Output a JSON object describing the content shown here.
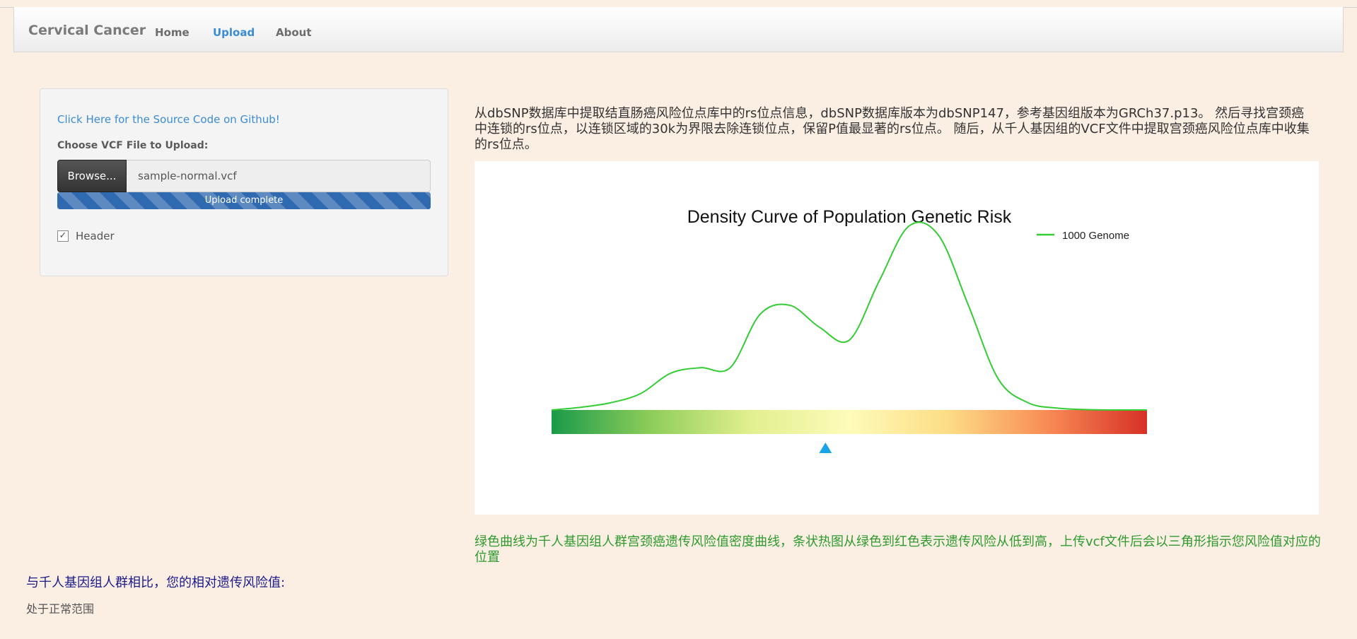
{
  "navbar": {
    "brand": "Cervical Cancer",
    "links": [
      {
        "label": "Home",
        "active": false
      },
      {
        "label": "Upload",
        "active": true
      },
      {
        "label": "About",
        "active": false
      }
    ]
  },
  "sidebar": {
    "github_link": "Click Here for the Source Code on Github!",
    "file_label": "Choose VCF File to Upload:",
    "browse_label": "Browse...",
    "file_name": "sample-normal.vcf",
    "progress_text": "Upload complete",
    "progress_value": 1.0,
    "header_label": "Header",
    "header_checked": true
  },
  "main": {
    "description": "从dbSNP数据库中提取结直肠癌风险位点库中的rs位点信息，dbSNP数据库版本为dbSNP147，参考基因组版本为GRCh37.p13。 然后寻找宫颈癌中连锁的rs位点，以连锁区域的30k为界限去除连锁位点，保留P值最显著的rs位点。 随后，从千人基因组的VCF文件中提取宫颈癌风险位点库中收集的rs位点。",
    "note": "绿色曲线为千人基因组人群宫颈癌遗传风险值密度曲线，条状热图从绿色到红色表示遗传风险从低到高，上传vcf文件后会以三角形指示您风险值对应的位置",
    "compare_label": "与千人基因组人群相比，您的相对遗传风险值:",
    "result": "处于正常范围"
  },
  "chart_data": {
    "type": "line",
    "title": "Density Curve of Population Genetic Risk",
    "series": [
      {
        "name": "1000 Genome",
        "color": "#33cc33",
        "x": [
          0,
          0.05,
          0.1,
          0.15,
          0.2,
          0.25,
          0.3,
          0.35,
          0.4,
          0.45,
          0.5,
          0.55,
          0.6,
          0.65,
          0.7,
          0.75,
          0.8,
          0.85,
          0.9,
          0.95,
          1.0
        ],
        "y": [
          0.0,
          0.015,
          0.04,
          0.09,
          0.2,
          0.23,
          0.23,
          0.52,
          0.57,
          0.45,
          0.38,
          0.7,
          1.0,
          0.95,
          0.57,
          0.17,
          0.04,
          0.01,
          0.002,
          0.0,
          0.0
        ]
      }
    ],
    "heatbar_colors": [
      "#1a9a4a",
      "#8fcd5a",
      "#e2ef8f",
      "#fdfbba",
      "#fddc85",
      "#f88b55",
      "#d73027"
    ],
    "marker_value": 0.46,
    "marker_color": "#1aa3e8",
    "legend": "top-right",
    "grid": false
  }
}
